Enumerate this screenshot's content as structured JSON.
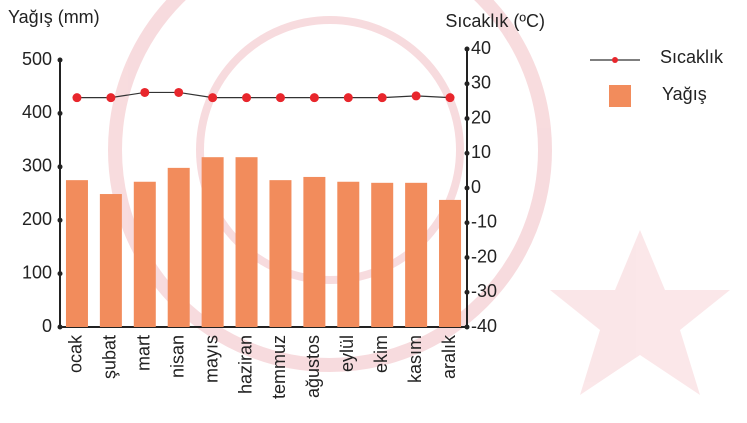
{
  "chart_data": {
    "type": "bar",
    "y_label": "Yağış (mm)",
    "y2_label": "Sıcaklık (ºC)",
    "categories": [
      "ocak",
      "şubat",
      "mart",
      "nisan",
      "mayıs",
      "haziran",
      "temmuz",
      "ağustos",
      "eylül",
      "ekim",
      "kasım",
      "aralık"
    ],
    "series": [
      {
        "name": "Yağış",
        "type": "bar",
        "color": "#f28c5c",
        "values": [
          275,
          249,
          272,
          298,
          318,
          318,
          275,
          281,
          272,
          270,
          270,
          238
        ]
      },
      {
        "name": "Sıcaklık",
        "type": "line",
        "axis": "y2",
        "color": "#e8262c",
        "values": [
          26,
          26,
          27.5,
          27.5,
          26,
          26,
          26,
          26,
          26,
          26,
          26.5,
          26
        ]
      }
    ],
    "ylim": [
      0,
      500
    ],
    "yticks": [
      0,
      100,
      200,
      300,
      400,
      500
    ],
    "y2lim": [
      -40,
      40
    ],
    "y2ticks": [
      -40,
      -30,
      -20,
      -10,
      0,
      10,
      20,
      30,
      40
    ]
  }
}
